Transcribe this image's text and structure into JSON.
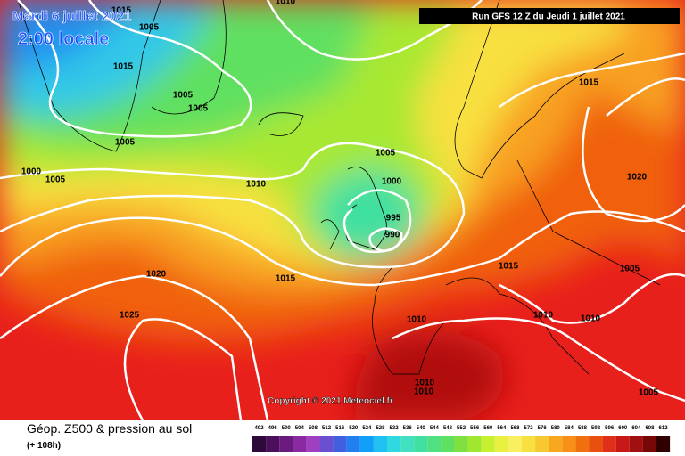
{
  "header": {
    "date": "Mardi 6 juillet 2021",
    "time": "2:00 locale",
    "run": "Run GFS 12 Z du Jeudi 1 juillet 2021"
  },
  "copyright": "Copyright © 2021 Meteociel.fr",
  "isobar_labels": [
    "1010",
    "1015",
    "1005",
    "1015",
    "1005",
    "1005",
    "1005",
    "1000",
    "1005",
    "1010",
    "1005",
    "1000",
    "995",
    "990",
    "1015",
    "1020",
    "1015",
    "1025",
    "1010",
    "1010",
    "1010",
    "1005",
    "1020",
    "1015",
    "1010",
    "1010",
    "1005"
  ],
  "footer": {
    "title": "Géop. Z500 & pression au sol",
    "lead": "(+ 108h)"
  },
  "legend": {
    "labels": [
      "492",
      "496",
      "500",
      "504",
      "508",
      "512",
      "516",
      "520",
      "524",
      "528",
      "532",
      "536",
      "540",
      "544",
      "548",
      "552",
      "556",
      "560",
      "564",
      "568",
      "572",
      "576",
      "580",
      "584",
      "588",
      "592",
      "596",
      "600",
      "604",
      "608",
      "612"
    ],
    "colors": [
      "#2d0a3a",
      "#4b0f5c",
      "#6b1a80",
      "#8a2aa0",
      "#a040c0",
      "#6a50d0",
      "#4060e0",
      "#2080f0",
      "#10a0f8",
      "#20c0f0",
      "#30d8e0",
      "#40e0c0",
      "#40e0a0",
      "#50e080",
      "#60e060",
      "#80e040",
      "#a0e830",
      "#c8f030",
      "#e8f040",
      "#f8f060",
      "#f8e040",
      "#f8c830",
      "#f8a820",
      "#f89018",
      "#f07010",
      "#e85010",
      "#e03018",
      "#c81818",
      "#a01010",
      "#780808",
      "#300000"
    ]
  }
}
